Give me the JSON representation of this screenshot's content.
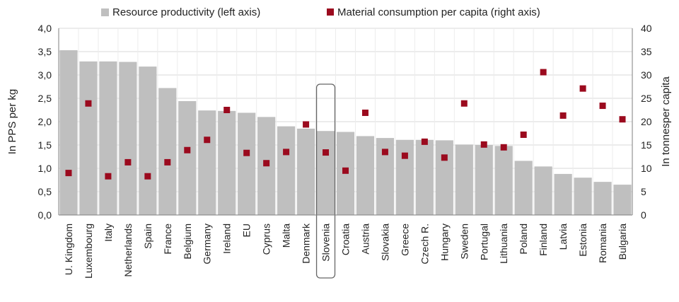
{
  "chart_data": {
    "type": "bar",
    "categories": [
      "U. Kingdom",
      "Luxembourg",
      "Italy",
      "Netherlands",
      "Spain",
      "France",
      "Belgium",
      "Germany",
      "Ireland",
      "EU",
      "Cyprus",
      "Malta",
      "Denmark",
      "Slovenia",
      "Croatia",
      "Austria",
      "Slovakia",
      "Greece",
      "Czech R.",
      "Hungary",
      "Sweden",
      "Portugal",
      "Lithuania",
      "Poland",
      "Finland",
      "Latvia",
      "Estonia",
      "Romania",
      "Bulgaria"
    ],
    "highlighted_category": "Slovenia",
    "series": [
      {
        "name": "Resource productivity (left axis)",
        "type": "bar",
        "axis": "left",
        "color": "#bfbfbf",
        "values": [
          3.53,
          3.29,
          3.29,
          3.28,
          3.18,
          2.72,
          2.44,
          2.24,
          2.23,
          2.19,
          2.1,
          1.9,
          1.85,
          1.8,
          1.78,
          1.69,
          1.65,
          1.61,
          1.61,
          1.6,
          1.51,
          1.5,
          1.48,
          1.16,
          1.04,
          0.88,
          0.8,
          0.71,
          0.65
        ]
      },
      {
        "name": "Material consumption per capita (right axis)",
        "type": "scatter",
        "axis": "right",
        "color": "#9b0a1e",
        "values": [
          9.0,
          23.9,
          8.3,
          11.3,
          8.3,
          11.3,
          13.9,
          16.1,
          22.5,
          13.3,
          11.1,
          13.5,
          19.4,
          13.4,
          9.5,
          21.9,
          13.5,
          12.7,
          15.7,
          12.3,
          23.9,
          15.1,
          14.5,
          17.2,
          30.6,
          21.3,
          27.1,
          23.4,
          20.5
        ]
      }
    ],
    "ylabel": "In PPS per kg",
    "ylabel_right": "In tonnesper capita",
    "ylim": [
      0,
      4
    ],
    "ylim_right": [
      0,
      40
    ],
    "yticks": [
      "0,0",
      "0,5",
      "1,0",
      "1,5",
      "2,0",
      "2,5",
      "3,0",
      "3,5",
      "4,0"
    ],
    "yticks_right": [
      "0",
      "5",
      "10",
      "15",
      "20",
      "25",
      "30",
      "35",
      "40"
    ],
    "grid": true,
    "legend_position": "top"
  }
}
